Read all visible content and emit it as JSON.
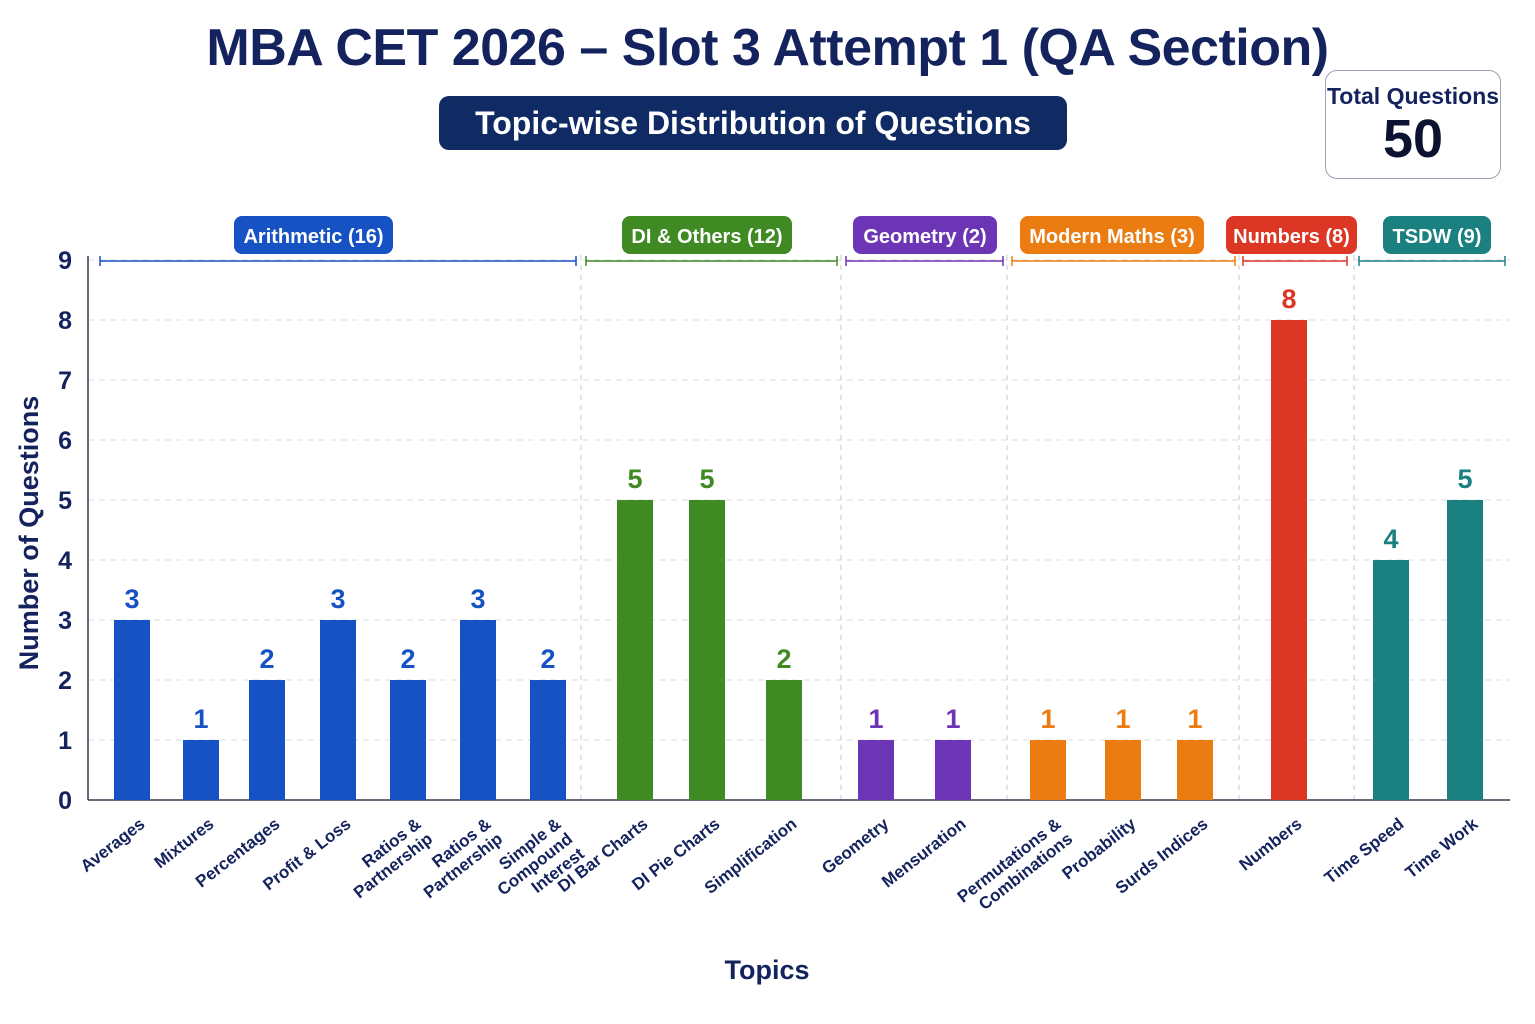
{
  "header": {
    "title": "MBA CET 2026 – Slot 3 Attempt 1 (QA Section)",
    "subtitle": "Topic-wise Distribution of Questions"
  },
  "total": {
    "label": "Total Questions",
    "value": "50"
  },
  "chart_data": {
    "type": "bar",
    "xlabel": "Topics",
    "ylabel": "Number of Questions",
    "ylim": [
      0,
      9
    ],
    "yticks": [
      0,
      1,
      2,
      3,
      4,
      5,
      6,
      7,
      8,
      9
    ],
    "grid": true,
    "groups": [
      {
        "label": "Arithmetic (16)",
        "color": "#1752c4",
        "categories": [
          "Averages",
          "Mixtures",
          "Percentages",
          "Profit & Loss",
          "Ratios & Partnership",
          "Ratios & Partnership",
          "Simple & Compound Interest"
        ],
        "values": [
          3,
          1,
          2,
          3,
          2,
          3,
          2
        ]
      },
      {
        "label": "DI & Others (12)",
        "color": "#3f8a22",
        "categories": [
          "DI Bar Charts",
          "DI Pie Charts",
          "Simplification"
        ],
        "values": [
          5,
          5,
          2
        ]
      },
      {
        "label": "Geometry (2)",
        "color": "#6c35b5",
        "categories": [
          "Geometry",
          "Mensuration"
        ],
        "values": [
          1,
          1
        ]
      },
      {
        "label": "Modern Maths (3)",
        "color": "#ea7c11",
        "categories": [
          "Permutations & Combinations",
          "Probability",
          "Surds Indices"
        ],
        "values": [
          1,
          1,
          1
        ]
      },
      {
        "label": "Numbers (8)",
        "color": "#dc3724",
        "categories": [
          "Numbers"
        ],
        "values": [
          8
        ]
      },
      {
        "label": "TSDW (9)",
        "color": "#1a8080",
        "categories": [
          "Time Speed",
          "Time Work"
        ],
        "values": [
          4,
          5
        ]
      }
    ]
  }
}
